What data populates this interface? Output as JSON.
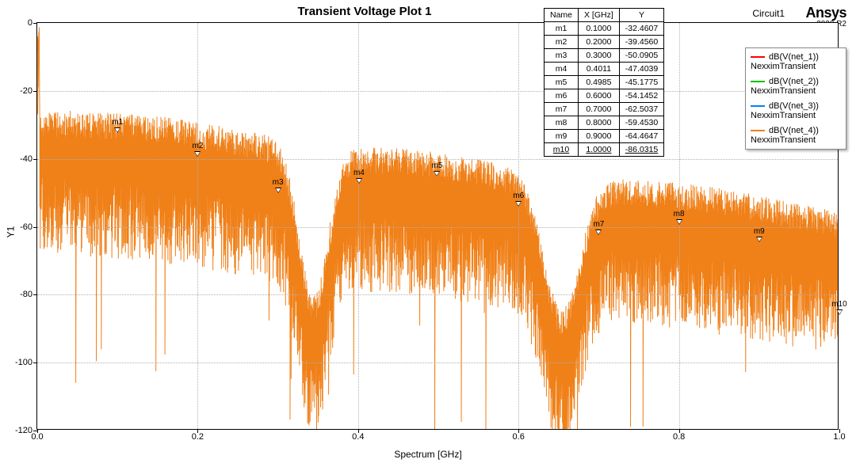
{
  "title": "Transient Voltage Plot 1",
  "circuit_label": "Circuit1",
  "brand": {
    "name": "Ansys",
    "version": "2022 R2"
  },
  "axes": {
    "xlabel": "Spectrum [GHz]",
    "ylabel": "Y1",
    "xlim": [
      0.0,
      1.0
    ],
    "ylim": [
      -120,
      0
    ],
    "xticks": [
      0.0,
      0.2,
      0.4,
      0.6,
      0.8,
      1.0
    ],
    "xtick_labels": [
      "0.0",
      "0.2",
      "0.4",
      "0.6",
      "0.8",
      "1.0"
    ],
    "yticks": [
      -120,
      -100,
      -80,
      -60,
      -40,
      -20,
      0
    ],
    "ytick_labels": [
      "-120",
      "-100",
      "-80",
      "-60",
      "-40",
      "-20",
      "0"
    ],
    "background_color": "#ffffff",
    "grid_color": "#b0b0b0",
    "border_color": "#000000",
    "label_fontsize": 12,
    "tick_fontsize": 11
  },
  "series": [
    {
      "label": "dB(V(net_1))",
      "sub": "NexximTransient",
      "color": "#ff0000"
    },
    {
      "label": "dB(V(net_2))",
      "sub": "NexximTransient",
      "color": "#00c000"
    },
    {
      "label": "dB(V(net_3))",
      "sub": "NexximTransient",
      "color": "#0080ff"
    },
    {
      "label": "dB(V(net_4))",
      "sub": "NexximTransient",
      "color": "#f08018"
    }
  ],
  "spectrum_style": {
    "trace_color": "#f08018",
    "n_points": 1600,
    "envelope": {
      "upper_base_db": -30,
      "lower_base_db": -46,
      "dip1_center": 0.345,
      "dip1_depth": 45,
      "dip1_width": 0.018,
      "dip2_center": 0.655,
      "dip2_depth": 40,
      "dip2_width": 0.022,
      "slope_upper": -30,
      "slope_lower": -30,
      "dc_spike_db": -5,
      "noise_spread_upper": 8,
      "noise_spread_lower": 22,
      "deep_spike_prob": 0.012,
      "deep_spike_extra": 35
    }
  },
  "marker_table": {
    "headers": [
      "Name",
      "X [GHz]",
      "Y"
    ],
    "rows": [
      {
        "name": "m1",
        "x": "0.1000",
        "y": "-32.4607"
      },
      {
        "name": "m2",
        "x": "0.2000",
        "y": "-39.4560"
      },
      {
        "name": "m3",
        "x": "0.3000",
        "y": "-50.0905"
      },
      {
        "name": "m4",
        "x": "0.4011",
        "y": "-47.4039"
      },
      {
        "name": "m5",
        "x": "0.4985",
        "y": "-45.1775"
      },
      {
        "name": "m6",
        "x": "0.6000",
        "y": "-54.1452"
      },
      {
        "name": "m7",
        "x": "0.7000",
        "y": "-62.5037"
      },
      {
        "name": "m8",
        "x": "0.8000",
        "y": "-59.4530"
      },
      {
        "name": "m9",
        "x": "0.9000",
        "y": "-64.4647"
      },
      {
        "name": "m10",
        "x": "1.0000",
        "y": "-86.0315"
      }
    ]
  },
  "markers": [
    {
      "name": "m1",
      "x": 0.1,
      "y": -32.4607
    },
    {
      "name": "m2",
      "x": 0.2,
      "y": -39.456
    },
    {
      "name": "m3",
      "x": 0.3,
      "y": -50.0905
    },
    {
      "name": "m4",
      "x": 0.4011,
      "y": -47.4039
    },
    {
      "name": "m5",
      "x": 0.4985,
      "y": -45.1775
    },
    {
      "name": "m6",
      "x": 0.6,
      "y": -54.1452
    },
    {
      "name": "m7",
      "x": 0.7,
      "y": -62.5037
    },
    {
      "name": "m8",
      "x": 0.8,
      "y": -59.453
    },
    {
      "name": "m9",
      "x": 0.9,
      "y": -64.4647
    },
    {
      "name": "m10",
      "x": 1.0,
      "y": -86.0315
    }
  ]
}
